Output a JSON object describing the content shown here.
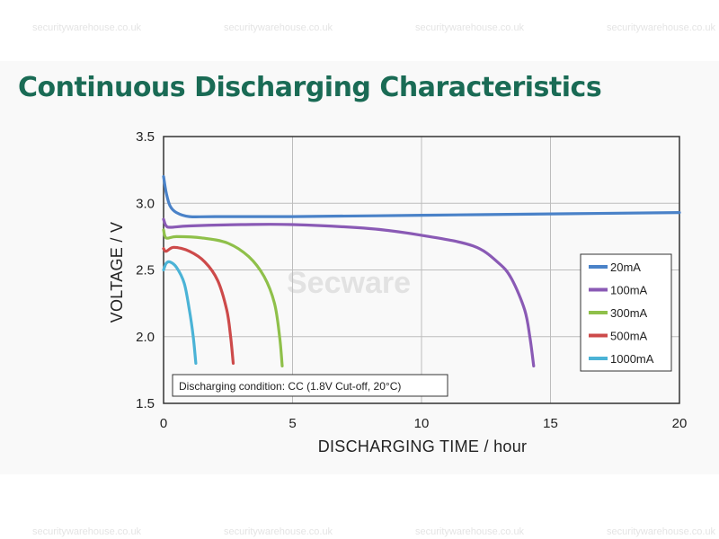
{
  "watermarks": {
    "top": [
      "securitywarehouse.co.uk",
      "securitywarehouse.co.uk",
      "securitywarehouse.co.uk",
      "securitywarehouse.co.uk"
    ],
    "bottom": [
      "securitywarehouse.co.uk",
      "securitywarehouse.co.uk",
      "securitywarehouse.co.uk",
      "securitywarehouse.co.uk"
    ],
    "center": "Secware"
  },
  "chart_data": {
    "type": "line",
    "title": "Continuous Discharging Characteristics",
    "xlabel": "DISCHARGING TIME / hour",
    "ylabel": "VOLTAGE / V",
    "xlim": [
      0,
      20
    ],
    "ylim": [
      1.5,
      3.5
    ],
    "xticks": [
      "0",
      "5",
      "10",
      "15",
      "20"
    ],
    "yticks": [
      "1.5",
      "2.0",
      "2.5",
      "3.0",
      "3.5"
    ],
    "grid": true,
    "legend_position": "right",
    "annotation": "Discharging condition: CC (1.8V Cut-off, 20°C)",
    "series": [
      {
        "name": "20mA",
        "color": "#4a82c8",
        "x": [
          0,
          0.1,
          0.25,
          0.5,
          1,
          2,
          5,
          10,
          15,
          20
        ],
        "y": [
          3.2,
          3.08,
          2.98,
          2.93,
          2.9,
          2.9,
          2.9,
          2.91,
          2.92,
          2.93
        ]
      },
      {
        "name": "100mA",
        "color": "#8a5ab5",
        "x": [
          0,
          0.1,
          0.3,
          1,
          3,
          5,
          8,
          10,
          12,
          13,
          13.5,
          14,
          14.2,
          14.35
        ],
        "y": [
          2.88,
          2.83,
          2.82,
          2.83,
          2.84,
          2.84,
          2.81,
          2.76,
          2.68,
          2.55,
          2.43,
          2.2,
          2.0,
          1.78
        ]
      },
      {
        "name": "300mA",
        "color": "#8fc04a",
        "x": [
          0,
          0.1,
          0.5,
          1.5,
          2.5,
          3.3,
          3.9,
          4.3,
          4.5,
          4.6
        ],
        "y": [
          2.8,
          2.74,
          2.75,
          2.74,
          2.7,
          2.6,
          2.45,
          2.25,
          2.0,
          1.78
        ]
      },
      {
        "name": "500mA",
        "color": "#cd4a4a",
        "x": [
          0,
          0.1,
          0.4,
          1,
          1.6,
          2.1,
          2.45,
          2.6,
          2.7
        ],
        "y": [
          2.66,
          2.64,
          2.67,
          2.64,
          2.56,
          2.42,
          2.2,
          2.0,
          1.8
        ]
      },
      {
        "name": "1000mA",
        "color": "#4bb3d6",
        "x": [
          0,
          0.1,
          0.25,
          0.5,
          0.8,
          1,
          1.15,
          1.25
        ],
        "y": [
          2.5,
          2.55,
          2.56,
          2.52,
          2.4,
          2.2,
          2.0,
          1.8
        ]
      }
    ]
  }
}
